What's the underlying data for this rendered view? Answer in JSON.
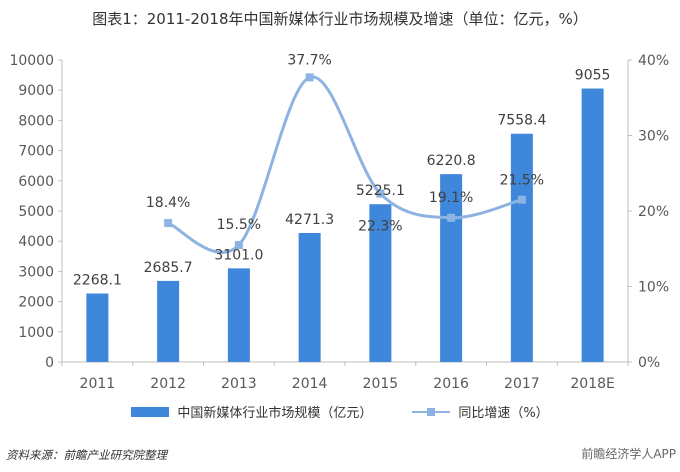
{
  "title": "图表1：2011-2018年中国新媒体行业市场规模及增速（单位：亿元，%）",
  "source": "资料来源：前瞻产业研究院整理",
  "brand": "前瞻经济学人APP",
  "colors": {
    "bar": "#3f87db",
    "line": "#8db3e2",
    "axis": "#bfbfbf",
    "text": "#595959"
  },
  "chart_data": {
    "type": "bar+line",
    "categories": [
      "2011",
      "2012",
      "2013",
      "2014",
      "2015",
      "2016",
      "2017",
      "2018E"
    ],
    "series": [
      {
        "name": "中国新媒体行业市场规模（亿元）",
        "type": "bar",
        "axis": "left",
        "values": [
          2268.1,
          2685.7,
          3101.0,
          4271.3,
          5225.1,
          6220.8,
          7558.4,
          9055
        ],
        "labels": [
          "2268.1",
          "2685.7",
          "3101.0",
          "4271.3",
          "5225.1",
          "6220.8",
          "7558.4",
          "9055"
        ]
      },
      {
        "name": "同比增速（%）",
        "type": "line",
        "axis": "right",
        "values": [
          null,
          18.4,
          15.5,
          37.7,
          22.3,
          19.1,
          21.5,
          null
        ],
        "labels": [
          "",
          "18.4%",
          "15.5%",
          "37.7%",
          "22.3%",
          "19.1%",
          "21.5%",
          ""
        ]
      }
    ],
    "yleft": {
      "ylim": [
        0,
        10000
      ],
      "ticks": [
        "0",
        "1000",
        "2000",
        "3000",
        "4000",
        "5000",
        "6000",
        "7000",
        "8000",
        "9000",
        "10000"
      ]
    },
    "yright": {
      "ylim": [
        0,
        40
      ],
      "ticks": [
        "0%",
        "10%",
        "20%",
        "30%",
        "40%"
      ]
    },
    "grid": false,
    "legend_position": "bottom"
  }
}
